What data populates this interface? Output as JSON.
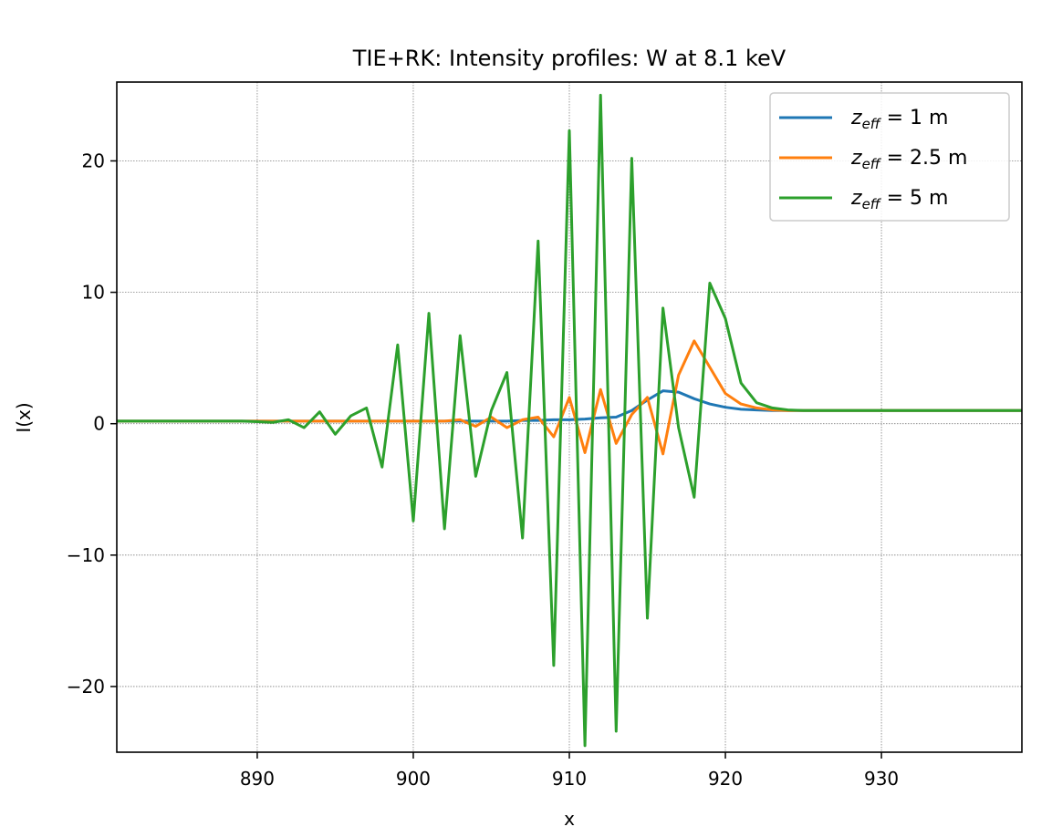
{
  "chart_data": {
    "type": "line",
    "title": "TIE+RK: Intensity profiles: W at 8.1 keV",
    "xlabel": "x",
    "ylabel": "I(x)",
    "xlim": [
      881,
      939
    ],
    "ylim": [
      -25,
      26
    ],
    "xticks": [
      890,
      900,
      910,
      920,
      930
    ],
    "yticks": [
      -20,
      -10,
      0,
      10,
      20
    ],
    "xtick_labels": [
      "890",
      "900",
      "910",
      "920",
      "930"
    ],
    "ytick_labels": [
      "−20",
      "−10",
      "0",
      "10",
      "20"
    ],
    "grid": true,
    "legend_position": "top-right",
    "x": [
      881,
      882,
      883,
      884,
      885,
      886,
      887,
      888,
      889,
      890,
      891,
      892,
      893,
      894,
      895,
      896,
      897,
      898,
      899,
      900,
      901,
      902,
      903,
      904,
      905,
      906,
      907,
      908,
      909,
      910,
      911,
      912,
      913,
      914,
      915,
      916,
      917,
      918,
      919,
      920,
      921,
      922,
      923,
      924,
      925,
      926,
      927,
      928,
      929,
      930,
      931,
      932,
      933,
      934,
      935,
      936,
      937,
      938,
      939
    ],
    "series": [
      {
        "legend_main": "z",
        "legend_sub": "eff",
        "legend_rest": " = 1 m",
        "color": "#1f77b4",
        "values": [
          0.2,
          0.2,
          0.2,
          0.2,
          0.2,
          0.2,
          0.2,
          0.2,
          0.2,
          0.2,
          0.2,
          0.2,
          0.2,
          0.2,
          0.2,
          0.2,
          0.2,
          0.2,
          0.2,
          0.2,
          0.2,
          0.2,
          0.2,
          0.2,
          0.2,
          0.2,
          0.25,
          0.25,
          0.3,
          0.3,
          0.35,
          0.45,
          0.5,
          1.0,
          1.8,
          2.5,
          2.4,
          1.9,
          1.5,
          1.25,
          1.1,
          1.05,
          1.0,
          1.0,
          1.0,
          1.0,
          1.0,
          1.0,
          1.0,
          1.0,
          1.0,
          1.0,
          1.0,
          1.0,
          1.0,
          1.0,
          1.0,
          1.0,
          1.0
        ]
      },
      {
        "legend_main": "z",
        "legend_sub": "eff",
        "legend_rest": " = 2.5 m",
        "color": "#ff7f0e",
        "values": [
          0.2,
          0.2,
          0.2,
          0.2,
          0.2,
          0.2,
          0.2,
          0.2,
          0.2,
          0.2,
          0.2,
          0.2,
          0.2,
          0.2,
          0.2,
          0.2,
          0.2,
          0.2,
          0.2,
          0.2,
          0.2,
          0.2,
          0.3,
          -0.2,
          0.5,
          -0.3,
          0.3,
          0.5,
          -1.0,
          2.0,
          -2.2,
          2.6,
          -1.5,
          0.7,
          2.0,
          -2.3,
          3.7,
          6.3,
          4.3,
          2.3,
          1.5,
          1.2,
          1.05,
          1.0,
          1.0,
          1.0,
          1.0,
          1.0,
          1.0,
          1.0,
          1.0,
          1.0,
          1.0,
          1.0,
          1.0,
          1.0,
          1.0,
          1.0,
          1.0
        ]
      },
      {
        "legend_main": "z",
        "legend_sub": "eff",
        "legend_rest": " = 5 m",
        "color": "#2ca02c",
        "values": [
          0.2,
          0.2,
          0.2,
          0.2,
          0.2,
          0.2,
          0.2,
          0.2,
          0.2,
          0.15,
          0.1,
          0.3,
          -0.3,
          0.9,
          -0.8,
          0.6,
          1.2,
          -3.3,
          6.0,
          -7.4,
          8.4,
          -8.0,
          6.7,
          -4.0,
          1.0,
          3.9,
          -8.7,
          13.9,
          -18.4,
          22.3,
          -24.5,
          25.0,
          -23.4,
          20.2,
          -14.8,
          8.8,
          -0.3,
          -5.6,
          10.7,
          8.0,
          3.1,
          1.6,
          1.2,
          1.05,
          1.0,
          1.0,
          1.0,
          1.0,
          1.0,
          1.0,
          1.0,
          1.0,
          1.0,
          1.0,
          1.0,
          1.0,
          1.0,
          1.0,
          1.0
        ]
      }
    ]
  }
}
